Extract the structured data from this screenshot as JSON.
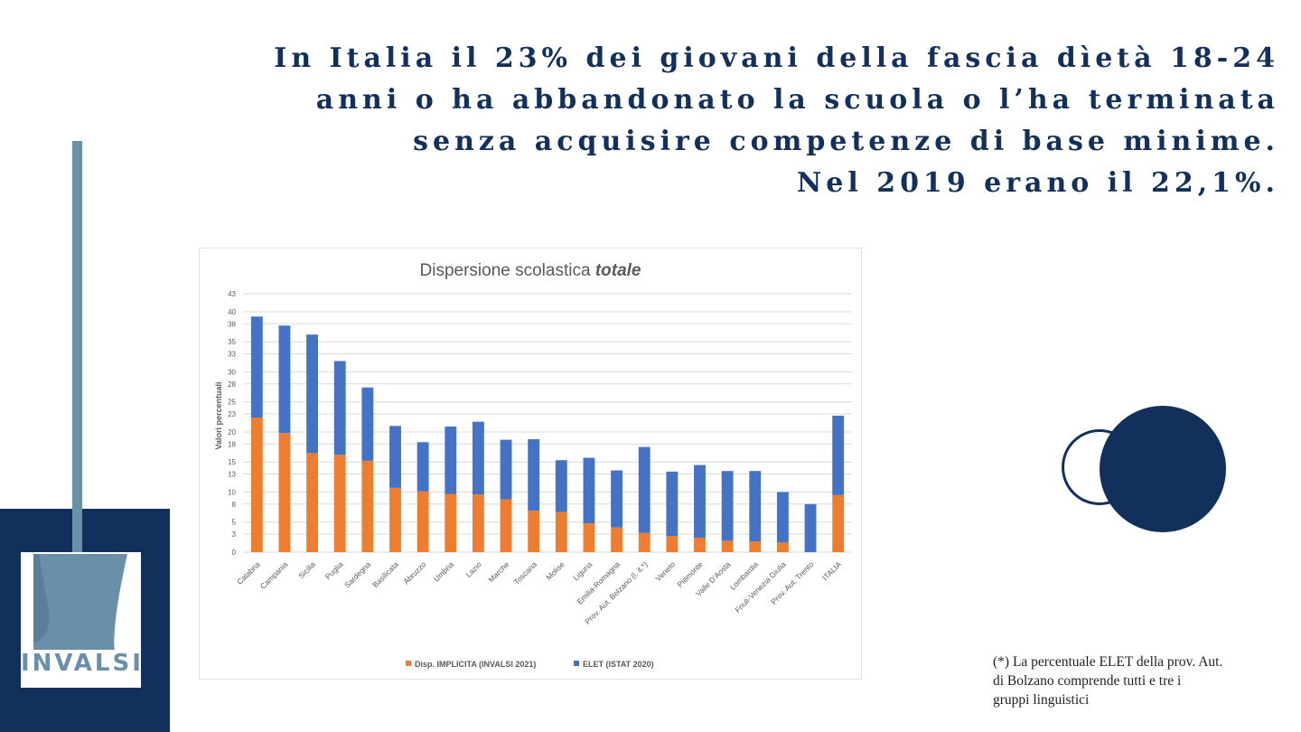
{
  "headline": {
    "line1": "In Italia il 23% dei giovani della fascia dìetà 18-24",
    "line2": "anni o ha abbandonato la scuola o l’ha terminata",
    "line3": "senza acquisire competenze di base minime.",
    "line4": "Nel 2019 erano il 22,1%."
  },
  "logo": {
    "text": "INVALSI"
  },
  "footnote": {
    "line1": "(*) La percentuale ELET della prov. Aut.",
    "line2": "di Bolzano comprende tutti e tre i",
    "line3": "gruppi linguistici"
  },
  "colors": {
    "navy": "#12305b",
    "steel": "#6a8fa8",
    "series_implicita": "#ed7d31",
    "series_elet": "#4472c4"
  },
  "chart_data": {
    "type": "bar",
    "stacked": true,
    "title_prefix": "Dispersione scolastica ",
    "title_emph": "totale",
    "ylabel": "Valori percentuali",
    "xlabel": "",
    "ylim": [
      0,
      43
    ],
    "yticks": [
      "0",
      "3",
      "5",
      "8",
      "10",
      "13",
      "15",
      "18",
      "20",
      "23",
      "25",
      "28",
      "30",
      "33",
      "35",
      "38",
      "40",
      "43"
    ],
    "categories": [
      "Calabria",
      "Campania",
      "Sicilia",
      "Puglia",
      "Sardegna",
      "Basilicata",
      "Abruzzo",
      "Umbria",
      "Lazio",
      "Marche",
      "Toscana",
      "Molise",
      "Liguria",
      "Emilia-Romagna",
      "Prov. Aut. Bolzano (l. it.*)",
      "Veneto",
      "Piemonte",
      "Valle D'Aosta",
      "Lombardia",
      "Friuli-Venezia Giulia",
      "Prov. Aut. Trento",
      "ITALIA"
    ],
    "series": [
      {
        "name": "Disp. IMPLICITA (INVALSI 2021)",
        "values": [
          22.4,
          19.8,
          16.5,
          16.2,
          15.2,
          10.7,
          10.1,
          9.7,
          9.6,
          8.8,
          6.9,
          6.7,
          4.8,
          4.1,
          3.2,
          2.7,
          2.4,
          1.9,
          1.8,
          1.6,
          0,
          9.5
        ]
      },
      {
        "name": "ELET (ISTAT 2020)",
        "values": [
          16.8,
          17.9,
          19.7,
          15.6,
          12.2,
          10.3,
          8.2,
          11.2,
          12.1,
          9.9,
          11.9,
          8.6,
          10.9,
          9.5,
          14.3,
          10.7,
          12.1,
          11.6,
          11.7,
          8.4,
          8.0,
          13.2
        ]
      }
    ],
    "legend_position": "bottom"
  }
}
